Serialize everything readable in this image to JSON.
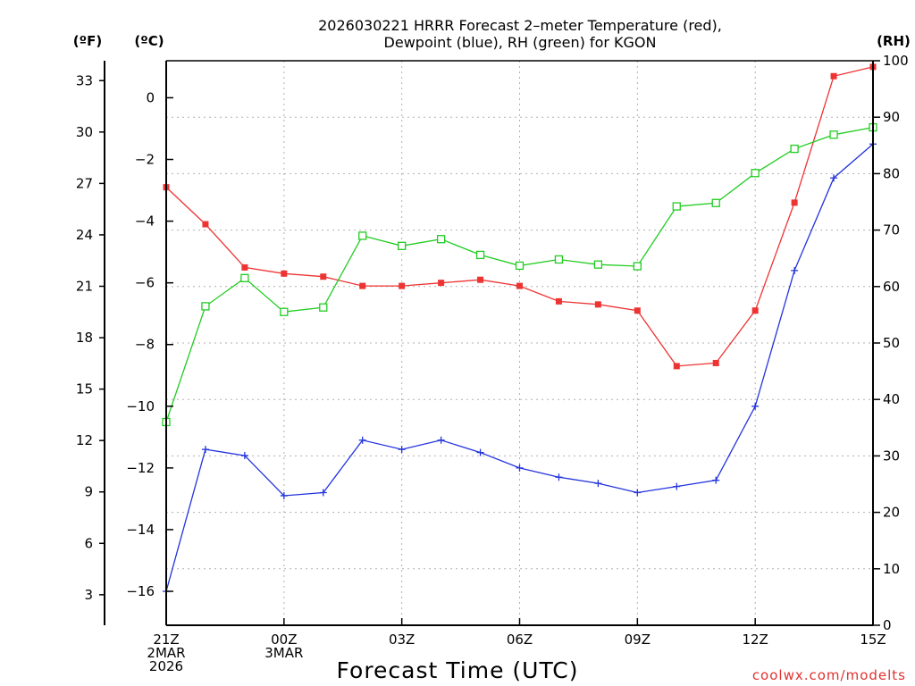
{
  "chart_data": {
    "type": "line",
    "title_lines": [
      "2026030221 HRRR Forecast 2–meter Temperature (red),",
      "Dewpoint (blue), RH (green) for KGON"
    ],
    "units": {
      "fahrenheit": "(ºF)",
      "celsius": "(ºC)",
      "rh": "(RH)"
    },
    "xlabel": "Forecast Time (UTC)",
    "credit": "coolwx.com/modelts",
    "x_range": [
      0,
      18
    ],
    "x_ticks": [
      {
        "x": 0,
        "lines": [
          "21Z",
          "2MAR",
          "2026"
        ]
      },
      {
        "x": 3,
        "lines": [
          "00Z",
          "3MAR"
        ]
      },
      {
        "x": 6,
        "lines": [
          "03Z"
        ]
      },
      {
        "x": 9,
        "lines": [
          "06Z"
        ]
      },
      {
        "x": 12,
        "lines": [
          "09Z"
        ]
      },
      {
        "x": 15,
        "lines": [
          "12Z"
        ]
      },
      {
        "x": 18,
        "lines": [
          "15Z"
        ]
      }
    ],
    "celsius_axis": {
      "range": [
        -17.1,
        1.2
      ],
      "ticks": [
        0,
        -2,
        -4,
        -6,
        -8,
        -10,
        -12,
        -14,
        -16
      ],
      "tick_labels": [
        "0",
        "−2",
        "−4",
        "−6",
        "−8",
        "−10",
        "−12",
        "−14",
        "−16"
      ]
    },
    "fahrenheit_axis": {
      "ticks": [
        3,
        6,
        9,
        12,
        15,
        18,
        21,
        24,
        27,
        30,
        33
      ]
    },
    "rh_axis": {
      "range": [
        0,
        100
      ],
      "ticks": [
        0,
        10,
        20,
        30,
        40,
        50,
        60,
        70,
        80,
        90,
        100
      ]
    },
    "grid": true,
    "x": [
      0,
      1,
      2,
      3,
      4,
      5,
      6,
      7,
      8,
      9,
      10,
      11,
      12,
      13,
      14,
      15,
      16,
      17,
      18
    ],
    "series": [
      {
        "name": "Temperature",
        "axis": "celsius",
        "color": "#ee3333",
        "marker": "filled-square",
        "values": [
          -2.9,
          -4.1,
          -5.5,
          -5.7,
          -5.8,
          -6.1,
          -6.1,
          -6.0,
          -5.9,
          -6.1,
          -6.6,
          -6.7,
          -6.9,
          -8.7,
          -8.6,
          -6.9,
          -3.4,
          0.7,
          1.0
        ]
      },
      {
        "name": "Dewpoint",
        "axis": "celsius",
        "color": "#2233dd",
        "marker": "plus",
        "values": [
          -16.0,
          -11.4,
          -11.6,
          -12.9,
          -12.8,
          -11.1,
          -11.4,
          -11.1,
          -11.5,
          -12.0,
          -12.3,
          -12.5,
          -12.8,
          -12.6,
          -12.4,
          -10.0,
          -5.6,
          -2.6,
          -1.5
        ]
      },
      {
        "name": "RH",
        "axis": "rh",
        "color": "#22cc22",
        "marker": "open-square",
        "values": [
          36,
          56.5,
          61.5,
          55.5,
          56.3,
          69,
          67.2,
          68.4,
          65.6,
          63.7,
          64.8,
          63.9,
          63.6,
          74.2,
          74.8,
          80.1,
          84.4,
          86.9,
          88.2
        ]
      }
    ]
  }
}
